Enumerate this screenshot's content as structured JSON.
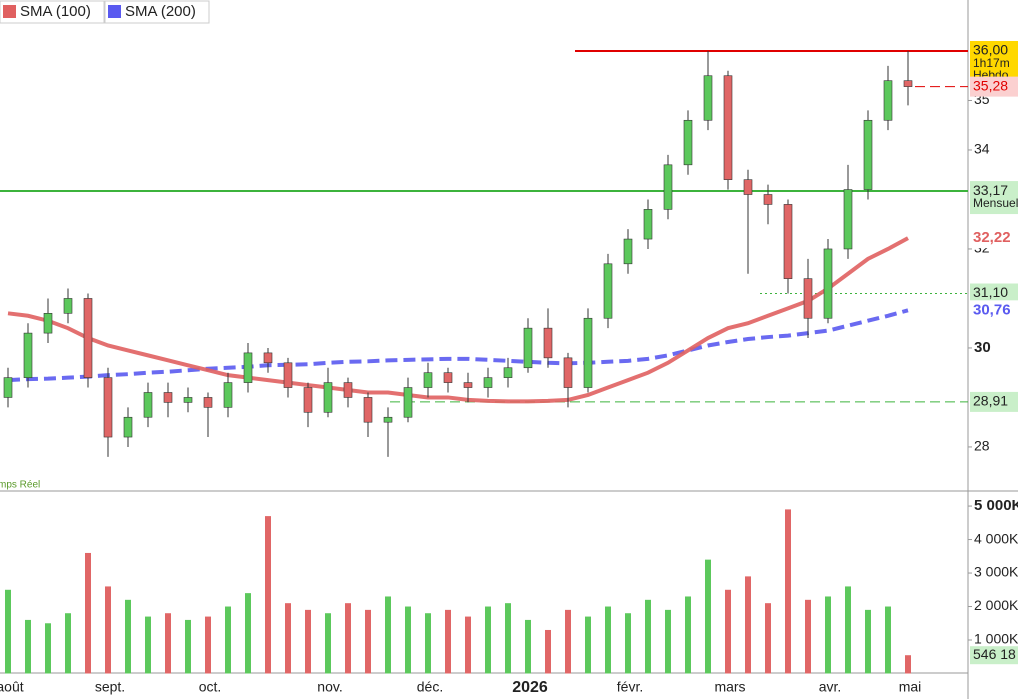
{
  "chart_data": [
    {
      "type": "candlestick",
      "categories": [
        "août",
        null,
        null,
        null,
        null,
        "sept.",
        null,
        null,
        null,
        null,
        "oct.",
        null,
        null,
        null,
        null,
        null,
        "nov.",
        null,
        null,
        null,
        null,
        "déc.",
        null,
        null,
        null,
        null,
        "2026",
        null,
        null,
        null,
        null,
        "févr.",
        null,
        null,
        null,
        null,
        "mars",
        null,
        null,
        null,
        null,
        "avr.",
        null,
        null,
        null,
        "mai"
      ],
      "open": [
        29.0,
        29.4,
        30.3,
        30.7,
        31.0,
        29.4,
        28.2,
        28.6,
        29.1,
        28.9,
        29.0,
        28.8,
        29.3,
        29.9,
        29.7,
        29.2,
        28.7,
        29.3,
        29.0,
        28.5,
        28.6,
        29.2,
        29.5,
        29.3,
        29.2,
        29.4,
        29.6,
        30.4,
        29.8,
        29.2,
        30.6,
        31.7,
        32.2,
        32.8,
        33.7,
        34.6,
        35.5,
        33.4,
        33.1,
        32.9,
        31.4,
        30.6,
        32.0,
        33.2,
        34.6,
        35.4
      ],
      "high": [
        29.6,
        30.5,
        31.0,
        31.2,
        31.1,
        29.6,
        28.8,
        29.3,
        29.3,
        29.2,
        29.1,
        29.5,
        30.1,
        30.0,
        29.8,
        29.3,
        29.6,
        29.4,
        29.1,
        28.8,
        29.4,
        29.7,
        29.6,
        29.5,
        29.6,
        29.8,
        30.6,
        30.8,
        29.9,
        30.8,
        31.9,
        32.4,
        33.0,
        33.9,
        34.8,
        36.0,
        35.6,
        33.6,
        33.3,
        33.0,
        31.8,
        32.2,
        33.7,
        34.8,
        35.7,
        36.0
      ],
      "low": [
        28.8,
        29.2,
        30.1,
        30.5,
        29.2,
        27.8,
        28.0,
        28.4,
        28.6,
        28.7,
        28.2,
        28.6,
        29.1,
        29.5,
        29.0,
        28.4,
        28.6,
        28.8,
        28.2,
        27.8,
        28.5,
        29.0,
        29.1,
        28.9,
        29.0,
        29.2,
        29.5,
        29.6,
        28.8,
        29.1,
        30.4,
        31.5,
        32.0,
        32.6,
        33.5,
        34.4,
        33.2,
        31.5,
        32.5,
        31.1,
        30.2,
        30.5,
        31.8,
        33.0,
        34.4,
        34.9
      ],
      "close": [
        29.4,
        30.3,
        30.7,
        31.0,
        29.4,
        28.2,
        28.6,
        29.1,
        28.9,
        29.0,
        28.8,
        29.3,
        29.9,
        29.7,
        29.2,
        28.7,
        29.3,
        29.0,
        28.5,
        28.6,
        29.2,
        29.5,
        29.3,
        29.2,
        29.4,
        29.6,
        30.4,
        29.8,
        29.2,
        30.6,
        31.7,
        32.2,
        32.8,
        33.7,
        34.6,
        35.5,
        33.4,
        33.1,
        32.9,
        31.4,
        30.6,
        32.0,
        33.2,
        34.6,
        35.4,
        35.28
      ],
      "up_color": "#5cc85c",
      "down_color": "#e06666",
      "series": [
        {
          "name": "SMA (200)",
          "color": "#5a5af0",
          "dashed": true,
          "last_label": {
            "value": 30.76,
            "label": "30,76"
          },
          "values": [
            29.35,
            29.37,
            29.38,
            29.4,
            29.42,
            29.45,
            29.47,
            29.5,
            29.52,
            29.55,
            29.58,
            29.6,
            29.62,
            29.65,
            29.66,
            29.67,
            29.7,
            29.72,
            29.73,
            29.75,
            29.76,
            29.77,
            29.78,
            29.78,
            29.76,
            29.74,
            29.72,
            29.7,
            29.69,
            29.7,
            29.72,
            29.74,
            29.78,
            29.85,
            29.95,
            30.05,
            30.12,
            30.18,
            30.22,
            30.25,
            30.3,
            30.35,
            30.45,
            30.55,
            30.65,
            30.76
          ]
        },
        {
          "name": "SMA (100)",
          "color": "#e06060",
          "dashed": false,
          "last_label": {
            "value": 32.22,
            "label": "32,22"
          },
          "values": [
            30.7,
            30.65,
            30.55,
            30.4,
            30.2,
            30.05,
            29.95,
            29.85,
            29.75,
            29.65,
            29.55,
            29.45,
            29.4,
            29.35,
            29.3,
            29.25,
            29.2,
            29.15,
            29.1,
            29.1,
            29.05,
            29.0,
            29.0,
            28.95,
            28.93,
            28.92,
            28.92,
            28.93,
            28.95,
            29.05,
            29.2,
            29.35,
            29.5,
            29.7,
            29.95,
            30.2,
            30.4,
            30.5,
            30.65,
            30.8,
            30.95,
            31.2,
            31.5,
            31.8,
            32.0,
            32.22
          ]
        }
      ],
      "levels": [
        {
          "value": 36,
          "label": "36,00",
          "color": "#e00000",
          "style": "solid",
          "notes": [
            "1h17m",
            "Hebdo"
          ]
        },
        {
          "value": 35.28,
          "label": "35,28",
          "color": "#e00000",
          "style": "dashed"
        },
        {
          "value": 33.17,
          "label": "33,17",
          "color": "#3cb33c",
          "style": "solid",
          "notes": [
            "Mensuel"
          ]
        },
        {
          "value": 31.1,
          "label": "31,10",
          "color": "#3cb33c",
          "style": "dotted"
        },
        {
          "value": 28.91,
          "label": "28,91",
          "color": "#3cb33c",
          "style": "dashed"
        }
      ],
      "annotation": "mps Réel",
      "ylim": [
        27.13,
        37.03
      ],
      "yticks": [
        28,
        30,
        32,
        34,
        35
      ]
    },
    {
      "type": "bar",
      "values": [
        2500,
        1600,
        1500,
        1800,
        3600,
        2600,
        2200,
        1700,
        1800,
        1600,
        1700,
        2000,
        2400,
        4700,
        2100,
        1900,
        1800,
        2100,
        1900,
        2300,
        2000,
        1800,
        1900,
        1700,
        2000,
        2100,
        1600,
        1300,
        1900,
        1700,
        2000,
        1800,
        2200,
        1900,
        2300,
        3400,
        2500,
        2900,
        2100,
        4900,
        2200,
        2300,
        2600,
        1900,
        2000,
        546.18
      ],
      "last_label": {
        "value": 546.18,
        "label": "546 18"
      },
      "ylim": [
        0,
        5420
      ],
      "yticks": [
        {
          "value": 1000,
          "label": "1 000K"
        },
        {
          "value": 2000,
          "label": "2 000K"
        },
        {
          "value": 3000,
          "label": "3 000K"
        },
        {
          "value": 4000,
          "label": "4 000K"
        },
        {
          "value": 5000,
          "label": "5 000K"
        }
      ]
    }
  ]
}
